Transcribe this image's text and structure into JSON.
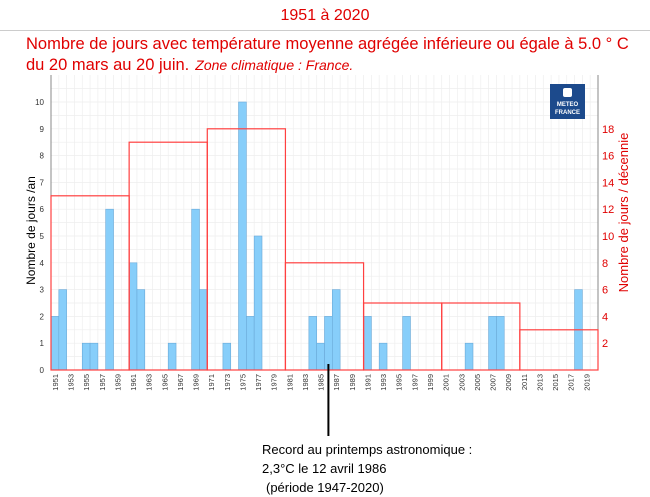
{
  "header": {
    "period": "1951 à 2020",
    "title": "Nombre de jours avec température moyenne agrégée inférieure ou égale à 5.0 ° C du 20 mars au 20 juin.",
    "zone": "Zone climatique : France."
  },
  "logo": {
    "line1": "METEO",
    "line2": "FRANCE"
  },
  "annotation": {
    "line1": "Record au printemps astronomique :",
    "line2": "2,3°C le 12 avril 1986",
    "line3": "(période 1947-2020)",
    "year": 1986
  },
  "chart_data": {
    "type": "bar",
    "ylabel": "Nombre de jours /an",
    "y2label": "Nombre de jours / décennie",
    "ylim": [
      0,
      10.5
    ],
    "y2lim": [
      0,
      21
    ],
    "yticks": [
      0,
      1,
      2,
      3,
      4,
      5,
      6,
      7,
      8,
      9,
      10
    ],
    "y2ticks": [
      2,
      4,
      6,
      8,
      10,
      12,
      14,
      16,
      18
    ],
    "x_start": 1951,
    "x_end": 2020,
    "yearly": {
      "1951": 2,
      "1952": 3,
      "1955": 1,
      "1956": 1,
      "1958": 6,
      "1961": 4,
      "1962": 3,
      "1966": 1,
      "1969": 6,
      "1970": 3,
      "1973": 1,
      "1975": 10,
      "1976": 2,
      "1977": 5,
      "1984": 2,
      "1985": 1,
      "1986": 2,
      "1987": 3,
      "1991": 2,
      "1993": 1,
      "1996": 2,
      "2004": 1,
      "2007": 2,
      "2008": 2,
      "2018": 3
    },
    "decades": [
      {
        "start": 1951,
        "value": 13
      },
      {
        "start": 1961,
        "value": 17
      },
      {
        "start": 1971,
        "value": 18
      },
      {
        "start": 1981,
        "value": 8
      },
      {
        "start": 1991,
        "value": 5
      },
      {
        "start": 2001,
        "value": 5
      },
      {
        "start": 2011,
        "value": 3
      }
    ],
    "colors": {
      "bar": "#87cefa",
      "bar_stroke": "#6aa9d8",
      "decade": "#ff4040",
      "axis2": "#e00000"
    }
  }
}
